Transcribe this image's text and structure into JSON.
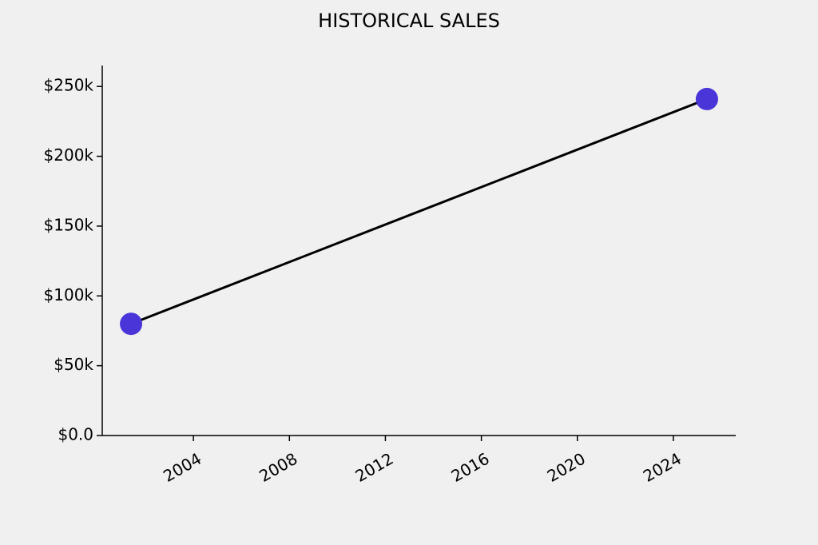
{
  "chart_data": {
    "type": "line",
    "title": "HISTORICAL SALES",
    "x": [
      2001.4,
      2025.4
    ],
    "series": [
      {
        "values": [
          80000,
          241000
        ],
        "color": "#4a35d9",
        "line_color": "#000000"
      }
    ],
    "xlim": [
      2000.2,
      2026.6
    ],
    "xticks": [
      2004,
      2008,
      2012,
      2016,
      2020,
      2024
    ],
    "ylim": [
      0,
      265000
    ],
    "yticks": [
      {
        "value": 0,
        "label": "$0.0"
      },
      {
        "value": 50000,
        "label": "$50k"
      },
      {
        "value": 100000,
        "label": "$100k"
      },
      {
        "value": 150000,
        "label": "$150k"
      },
      {
        "value": 200000,
        "label": "$200k"
      },
      {
        "value": 250000,
        "label": "$250k"
      }
    ],
    "grid": false
  }
}
